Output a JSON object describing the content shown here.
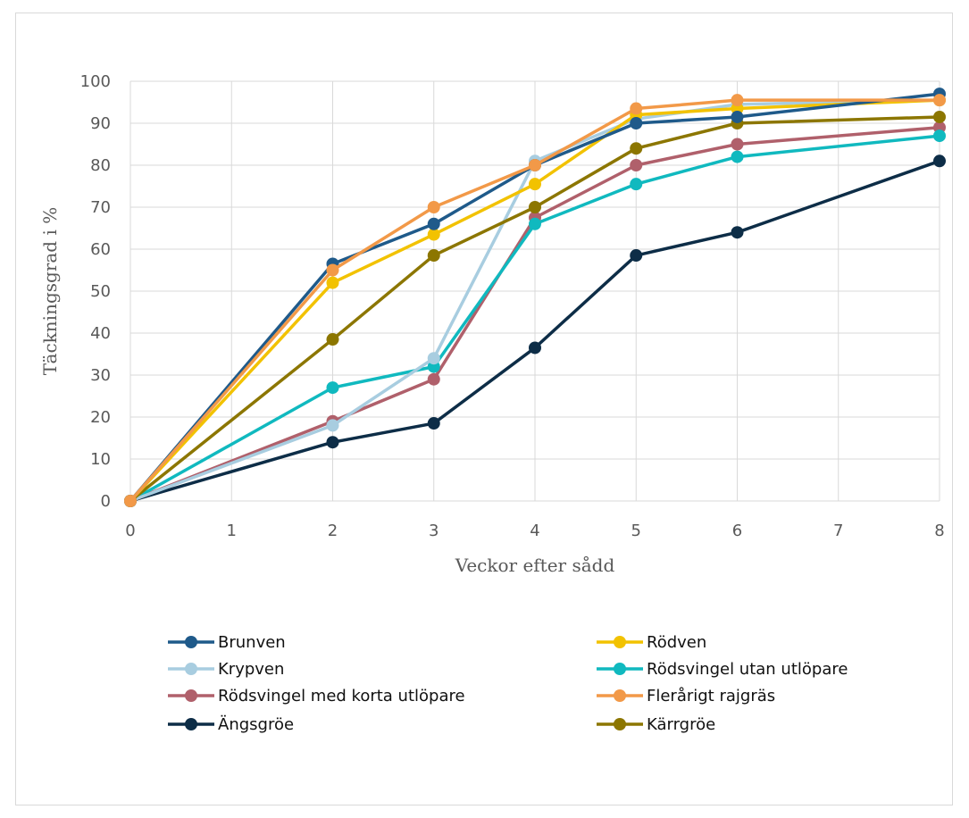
{
  "chart_data": {
    "type": "line",
    "title": "",
    "xlabel": "Veckor efter sådd",
    "ylabel": "Täckningsgrad i %",
    "xlim": [
      0,
      8
    ],
    "ylim": [
      0,
      100
    ],
    "x_ticks": [
      0,
      1,
      2,
      3,
      4,
      5,
      6,
      7,
      8
    ],
    "y_ticks": [
      0,
      10,
      20,
      30,
      40,
      50,
      60,
      70,
      80,
      90,
      100
    ],
    "grid": true,
    "legend_position": "bottom",
    "x": [
      0,
      2,
      3,
      4,
      5,
      6,
      8
    ],
    "series": [
      {
        "name": "Brunven",
        "color": "#1f5a8a",
        "values": [
          0,
          56.5,
          66,
          80,
          90,
          91.5,
          97
        ]
      },
      {
        "name": "Rödven",
        "color": "#f2c200",
        "values": [
          0,
          52,
          63.5,
          75.5,
          92,
          93.5,
          95.5
        ]
      },
      {
        "name": "Krypven",
        "color": "#a8cde0",
        "values": [
          0,
          18,
          34,
          81,
          91,
          94.5,
          95.5
        ]
      },
      {
        "name": "Rödsvingel utan utlöpare",
        "color": "#10b9bf",
        "values": [
          0,
          27,
          32,
          66,
          75.5,
          82,
          87
        ]
      },
      {
        "name": "Rödsvingel med korta utlöpare",
        "color": "#b0606b",
        "values": [
          0,
          19,
          29,
          67.5,
          80,
          85,
          89
        ]
      },
      {
        "name": "Flerårigt rajgräs",
        "color": "#f29948",
        "values": [
          0,
          55,
          70,
          80,
          93.5,
          95.5,
          95.5
        ]
      },
      {
        "name": "Ängsgröe",
        "color": "#0d2d47",
        "values": [
          0,
          14,
          18.5,
          36.5,
          58.5,
          64,
          81
        ]
      },
      {
        "name": "Kärrgröe",
        "color": "#8c7600",
        "values": [
          0,
          38.5,
          58.5,
          70,
          84,
          90,
          91.5
        ]
      }
    ]
  }
}
